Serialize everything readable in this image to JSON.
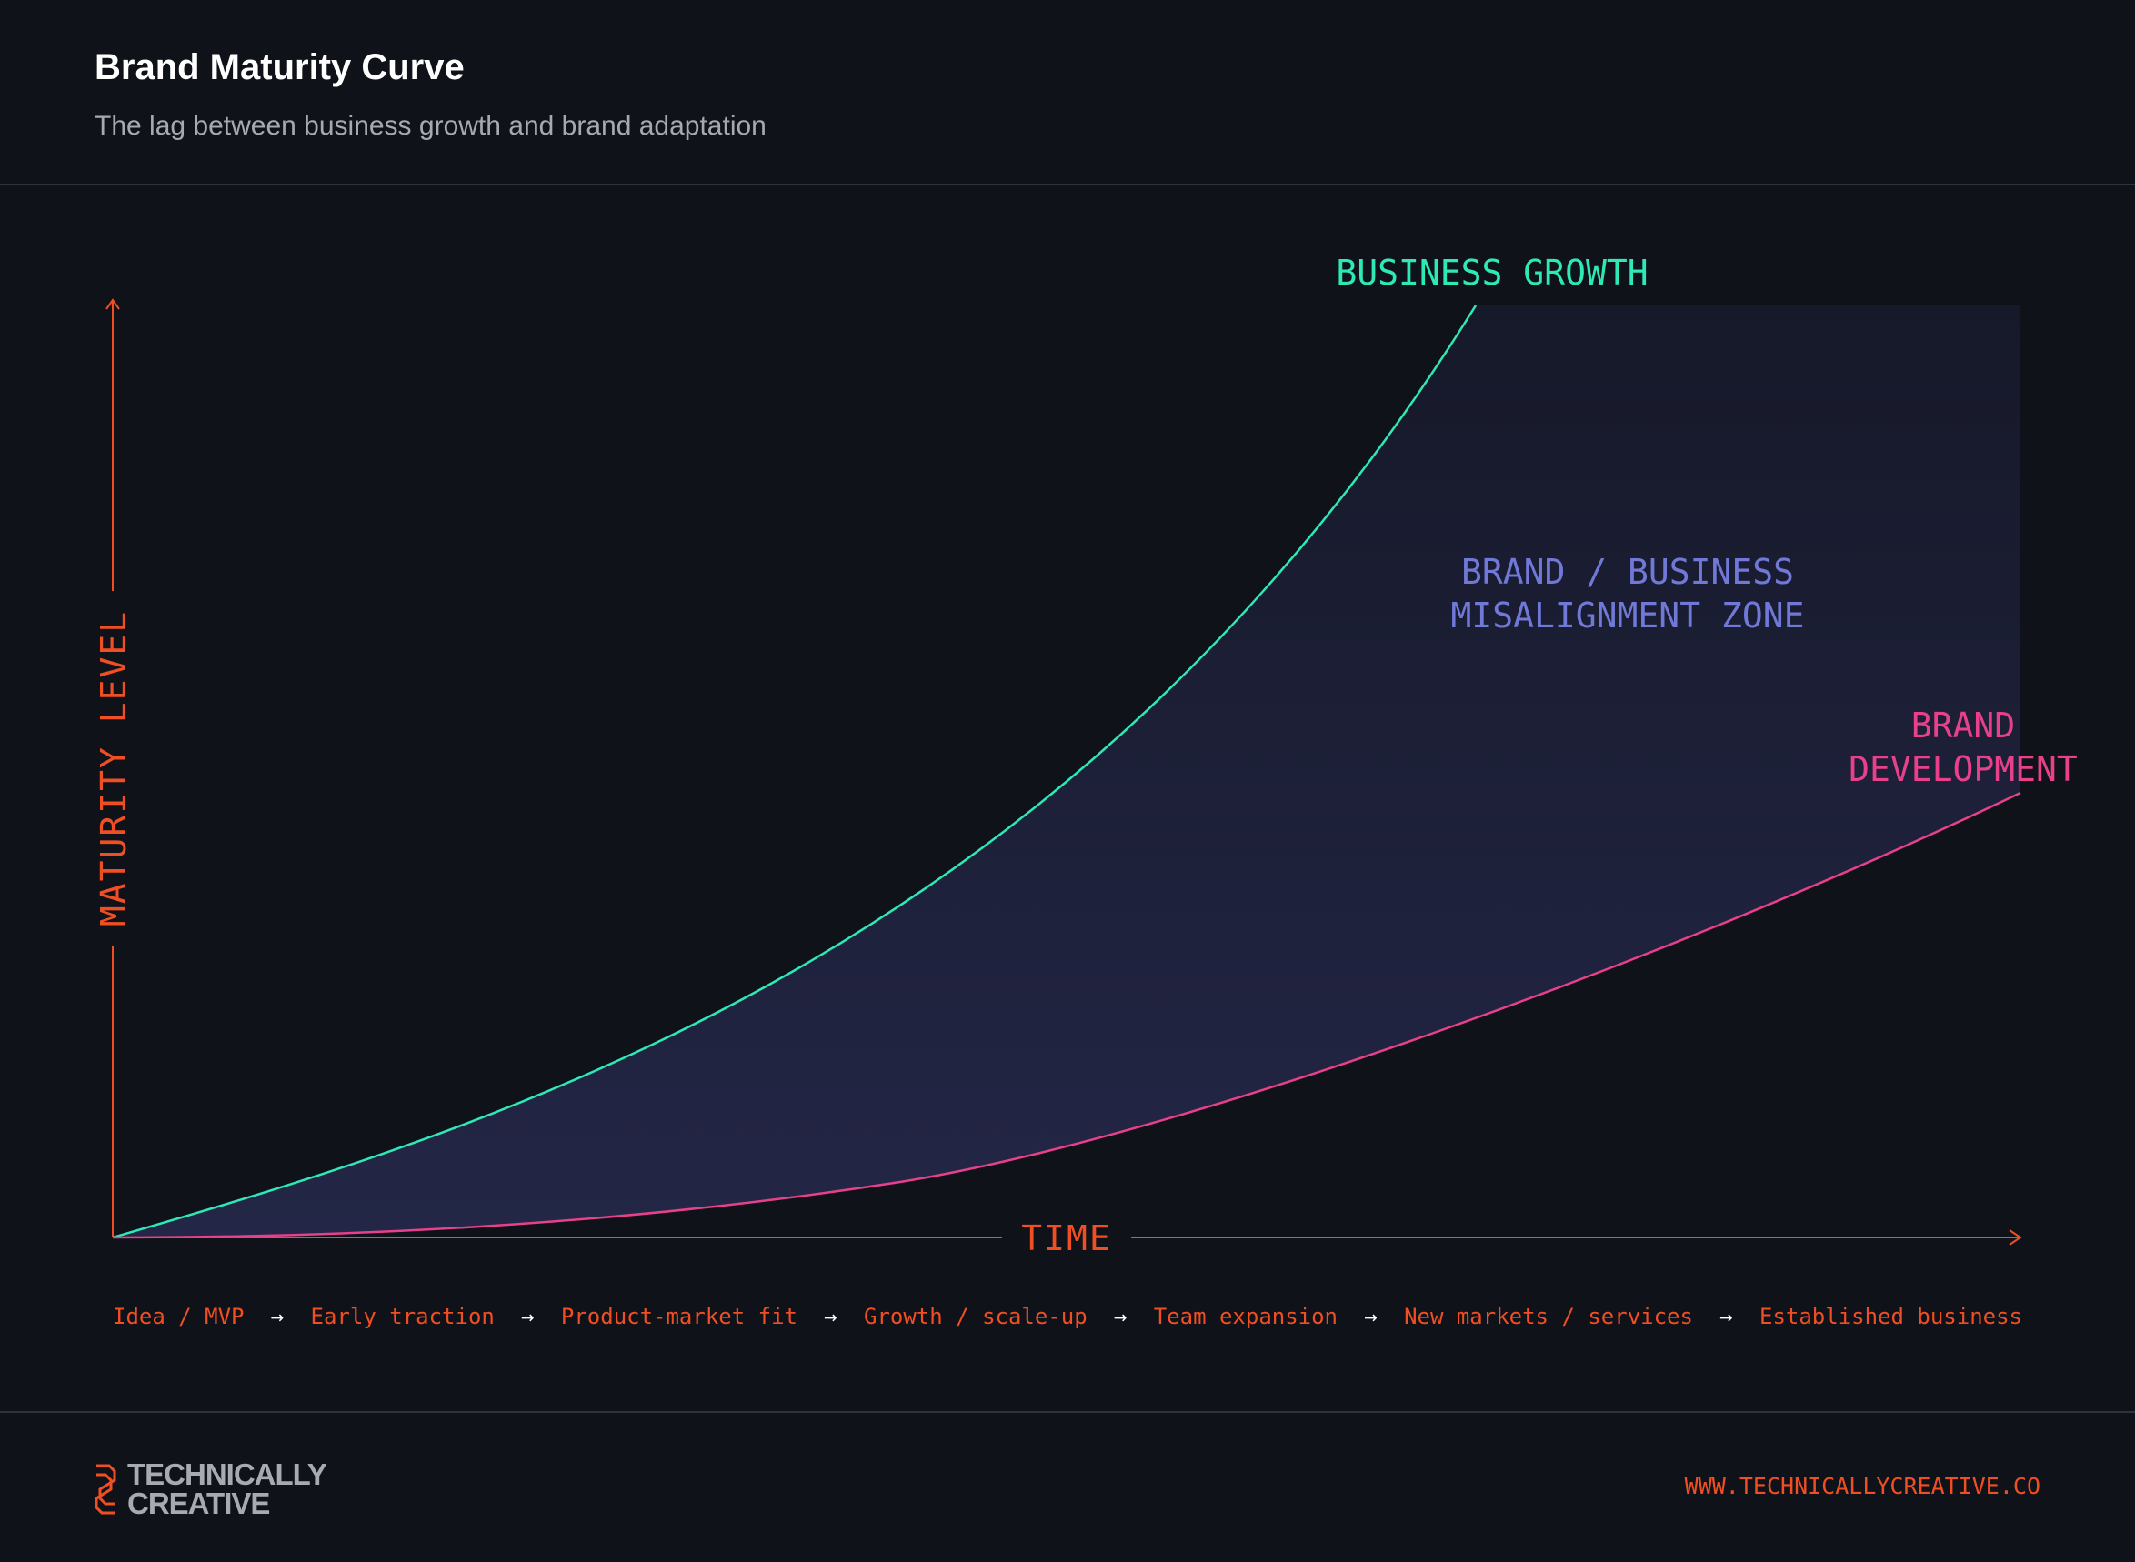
{
  "header": {
    "title": "Brand Maturity Curve",
    "subtitle": "The lag between business growth and brand adaptation"
  },
  "chart": {
    "y_axis_label": "MATURITY LEVEL",
    "x_axis_label": "TIME",
    "curves": {
      "business_growth_label": "BUSINESS GROWTH",
      "brand_development_line1": "BRAND",
      "brand_development_line2": "DEVELOPMENT"
    },
    "zone": {
      "line1": "BRAND / BUSINESS",
      "line2": "MISALIGNMENT ZONE"
    },
    "stages": [
      "Idea / MVP",
      "Early traction",
      "Product-market fit",
      "Growth / scale-up",
      "Team expansion",
      "New markets / services",
      "Established business"
    ],
    "stage_separator": "→"
  },
  "colors": {
    "background": "#0f1219",
    "accent_orange": "#f04e23",
    "business_growth": "#2ee8b6",
    "brand_development": "#e8408a",
    "zone_label": "#7078d8",
    "zone_fill": "#232646"
  },
  "footer": {
    "logo_line1": "TECHNICALLY",
    "logo_line2": "CREATIVE",
    "logo_icon": "technically-creative-logo-icon",
    "website": "WWW.TECHNICALLYCREATIVE.CO"
  }
}
